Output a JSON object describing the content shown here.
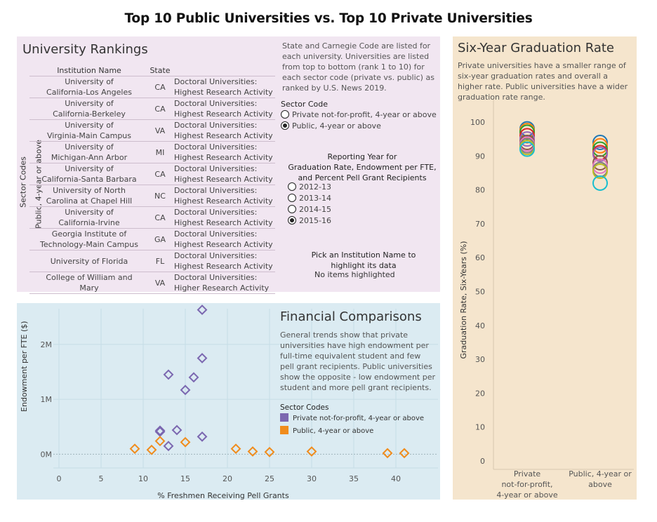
{
  "title": "Top 10 Public Universities vs. Top 10 Private Universities",
  "rankings": {
    "title": "University Rankings",
    "headers": {
      "institution": "Institution Name",
      "state": "State"
    },
    "row_axis_label": "Sector Codes",
    "row_group_label": "Public, 4-year or above",
    "rows": [
      {
        "l1": "University of",
        "l2": "California-Los Angeles",
        "state": "CA",
        "c1": "Doctoral Universities:",
        "c2": "Highest Research Activity"
      },
      {
        "l1": "University of",
        "l2": "California-Berkeley",
        "state": "CA",
        "c1": "Doctoral Universities:",
        "c2": "Highest Research Activity"
      },
      {
        "l1": "University of",
        "l2": "Virginia-Main Campus",
        "state": "VA",
        "c1": "Doctoral Universities:",
        "c2": "Highest Research Activity"
      },
      {
        "l1": "University of",
        "l2": "Michigan-Ann Arbor",
        "state": "MI",
        "c1": "Doctoral Universities:",
        "c2": "Highest Research Activity"
      },
      {
        "l1": "University of",
        "l2": "California-Santa Barbara",
        "state": "CA",
        "c1": "Doctoral Universities:",
        "c2": "Highest Research Activity"
      },
      {
        "l1": "University of North",
        "l2": "Carolina at Chapel Hill",
        "state": "NC",
        "c1": "Doctoral Universities:",
        "c2": "Highest Research Activity"
      },
      {
        "l1": "University of",
        "l2": "California-Irvine",
        "state": "CA",
        "c1": "Doctoral Universities:",
        "c2": "Highest Research Activity"
      },
      {
        "l1": "Georgia Institute of",
        "l2": "Technology-Main Campus",
        "state": "GA",
        "c1": "Doctoral Universities:",
        "c2": "Highest Research Activity"
      },
      {
        "l1": "University of Florida",
        "l2": "",
        "state": "FL",
        "c1": "Doctoral Universities:",
        "c2": "Highest Research Activity"
      },
      {
        "l1": "College of William and",
        "l2": "Mary",
        "state": "VA",
        "c1": "Doctoral Universities:",
        "c2": "Higher Research Activity"
      }
    ],
    "note": "State and Carnegie Code are listed for each university. Universities are listed from top to bottom (rank 1 to 10) for each sector code (private vs. public) as ranked by U.S. News 2019."
  },
  "sector_filter": {
    "title": "Sector Code",
    "options": [
      {
        "label": "Private not-for-profit, 4-year or above",
        "selected": false
      },
      {
        "label": "Public, 4-year or above",
        "selected": true
      }
    ]
  },
  "year_filter": {
    "title_l1": "Reporting Year for",
    "title_l2": "Graduation Rate, Endowment per FTE,",
    "title_l3": "and Percent Pell Grant Recipients",
    "options": [
      {
        "label": "2012-13",
        "selected": false
      },
      {
        "label": "2013-14",
        "selected": false
      },
      {
        "label": "2014-15",
        "selected": false
      },
      {
        "label": "2015-16",
        "selected": true
      }
    ]
  },
  "highlight": {
    "title_l1": "Pick an Institution Name to",
    "title_l2": "highlight its data",
    "status": "No items highlighted"
  },
  "graduation": {
    "title": "Six-Year Graduation Rate",
    "description": "Private universities have a smaller range of six-year graduation rates and overall a higher rate. Public universities have a wider graduation rate range.",
    "chart_data": {
      "type": "scatter",
      "ylabel": "Graduation Rate, Six-Years (%)",
      "ylim": [
        0,
        100
      ],
      "yticks": [
        0,
        10,
        20,
        30,
        40,
        50,
        60,
        70,
        80,
        90,
        100
      ],
      "categories": [
        {
          "l1": "Private",
          "l2": "not-for-profit,",
          "l3": "4-year or above"
        },
        {
          "l1": "Public, 4-year or",
          "l2": "above",
          "l3": ""
        }
      ],
      "series": [
        {
          "category": 0,
          "values": [
            98,
            97.5,
            97,
            96,
            95,
            94,
            93.5,
            93,
            92.5,
            92
          ]
        },
        {
          "category": 1,
          "values": [
            94,
            93,
            92,
            91,
            90.5,
            88,
            87,
            86,
            85.5,
            82
          ]
        }
      ],
      "colors": [
        "#1f77b4",
        "#ff7f0e",
        "#2ca02c",
        "#d62728",
        "#9467bd",
        "#8c564b",
        "#e377c2",
        "#7f7f7f",
        "#bcbd22",
        "#17becf"
      ]
    }
  },
  "financial": {
    "title": "Financial Comparisons",
    "description": "General trends show that private universities have high endowment per full-time equivalent student and few pell grant recipients. Public universities show the opposite - low endowment per student and more pell grant recipients.",
    "legend_title": "Sector Codes",
    "chart_data": {
      "type": "scatter",
      "xlabel": "% Freshmen Receiving Pell Grants",
      "ylabel": "Endowment per FTE ($)",
      "xlim": [
        0,
        45
      ],
      "xticks": [
        0,
        5,
        10,
        15,
        20,
        25,
        30,
        35,
        40
      ],
      "ylim": [
        -250000,
        2650000
      ],
      "yticks": [
        {
          "v": 0,
          "label": "0M"
        },
        {
          "v": 1000000,
          "label": "1M"
        },
        {
          "v": 2000000,
          "label": "2M"
        }
      ],
      "series": [
        {
          "name": "Private not-for-profit, 4-year or above",
          "color": "#7b67b0",
          "points": [
            [
              17,
              2630000
            ],
            [
              17,
              1750000
            ],
            [
              13,
              1450000
            ],
            [
              16,
              1400000
            ],
            [
              15,
              1170000
            ],
            [
              12,
              430000
            ],
            [
              12,
              410000
            ],
            [
              14,
              440000
            ],
            [
              17,
              320000
            ],
            [
              13,
              150000
            ]
          ]
        },
        {
          "name": "Public, 4-year or above",
          "color": "#f08c1c",
          "points": [
            [
              9,
              100000
            ],
            [
              11,
              80000
            ],
            [
              12,
              240000
            ],
            [
              15,
              220000
            ],
            [
              21,
              100000
            ],
            [
              23,
              50000
            ],
            [
              25,
              40000
            ],
            [
              30,
              50000
            ],
            [
              39,
              20000
            ],
            [
              41,
              20000
            ]
          ]
        }
      ]
    }
  }
}
